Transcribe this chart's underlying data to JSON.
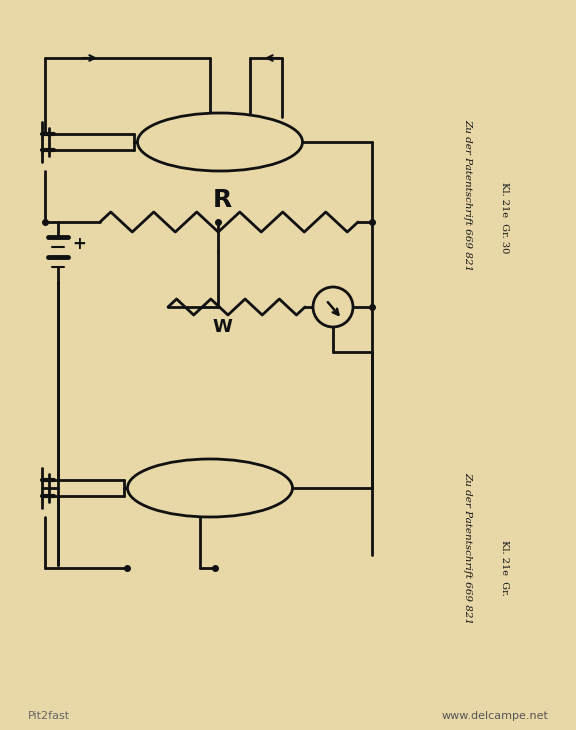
{
  "bg_color": "#e8d8a8",
  "line_color": "#111111",
  "lw": 2.0,
  "text_color": "#111111",
  "right_text1": "Zu der Patentschrift 669 821",
  "right_text2": "Kl. 21e  Gr. 30",
  "right_text3": "Zu der Patentschrift 669 821",
  "right_text4": "Kl. 21e  Gr.",
  "bottom_text1": "Pit2fast",
  "bottom_text2": "www.delcampe.net",
  "label_R": "R",
  "label_W": "W"
}
